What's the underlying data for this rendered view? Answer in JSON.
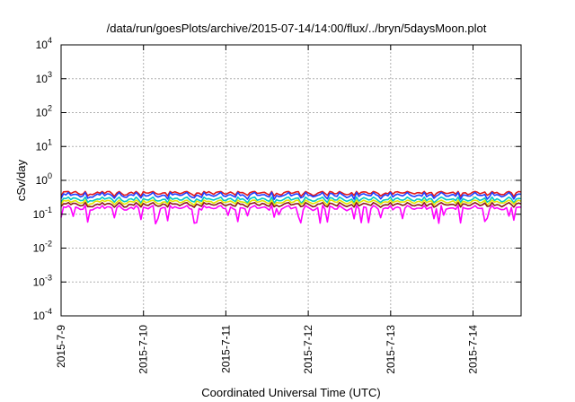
{
  "chart_data": {
    "type": "line",
    "title": "/data/run/goesPlots/archive/2015-07-14/14:00/flux/../bryn/5daysMoon.plot",
    "xlabel": "Coordinated Universal Time (UTC)",
    "ylabel": "cSv/day",
    "y_scale": "log",
    "ylim": [
      0.0001,
      10000
    ],
    "y_ticks": [
      {
        "exp": "-4",
        "value": 0.0001
      },
      {
        "exp": "-3",
        "value": 0.001
      },
      {
        "exp": "-2",
        "value": 0.01
      },
      {
        "exp": "-1",
        "value": 0.1
      },
      {
        "exp": "0",
        "value": 1
      },
      {
        "exp": "1",
        "value": 10
      },
      {
        "exp": "2",
        "value": 100
      },
      {
        "exp": "3",
        "value": 1000
      },
      {
        "exp": "4",
        "value": 10000
      }
    ],
    "xlim": [
      "2015-07-09",
      "2015-07-14T14:00"
    ],
    "x_ticks": [
      "2015-7-9",
      "2015-7-10",
      "2015-7-11",
      "2015-7-12",
      "2015-7-13",
      "2015-7-14"
    ],
    "grid": true,
    "legend": "none",
    "series": [
      {
        "color": "#e31a1c",
        "level": 0.42,
        "min": 0.33,
        "max": 0.47,
        "dips": false
      },
      {
        "color": "#1f3fff",
        "level": 0.36,
        "min": 0.27,
        "max": 0.44,
        "dips": false
      },
      {
        "color": "#00c8c8",
        "level": 0.27,
        "min": 0.21,
        "max": 0.32,
        "dips": false
      },
      {
        "color": "#e6e600",
        "level": 0.23,
        "min": 0.18,
        "max": 0.26,
        "dips": false
      },
      {
        "color": "#8b1a1a",
        "level": 0.19,
        "min": 0.16,
        "max": 0.22,
        "dips": false
      },
      {
        "color": "#ff00ff",
        "level": 0.15,
        "min": 0.05,
        "max": 0.18,
        "dips": true
      }
    ]
  }
}
